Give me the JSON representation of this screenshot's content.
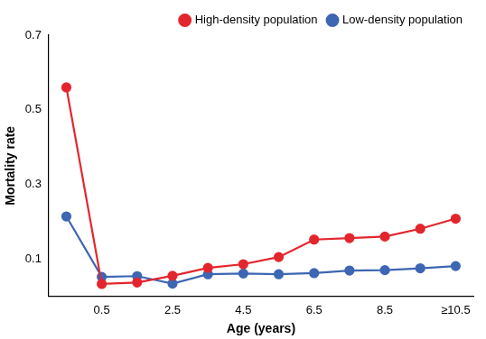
{
  "chart_data": {
    "type": "line",
    "x_label": "Age (years)",
    "y_label": "Mortality rate",
    "categories": [
      null,
      "0.5",
      null,
      "2.5",
      null,
      "4.5",
      null,
      "6.5",
      null,
      "8.5",
      null,
      "≥10.5"
    ],
    "series": [
      {
        "name": "High-density population",
        "color": "#e3262d",
        "marker": "circle",
        "values": [
          0.56,
          0.033,
          0.037,
          0.055,
          0.076,
          0.086,
          0.105,
          0.152,
          0.156,
          0.16,
          0.181,
          0.208
        ]
      },
      {
        "name": "Low-density population",
        "color": "#3d66b3",
        "marker": "circle",
        "values": [
          0.214,
          0.052,
          0.054,
          0.034,
          0.059,
          0.061,
          0.059,
          0.062,
          0.069,
          0.07,
          0.075,
          0.081
        ]
      }
    ],
    "ylim": [
      0,
      0.7
    ],
    "yticks": [
      0.1,
      0.3,
      0.5,
      0.7
    ],
    "grid": false,
    "legend": "top-right"
  }
}
